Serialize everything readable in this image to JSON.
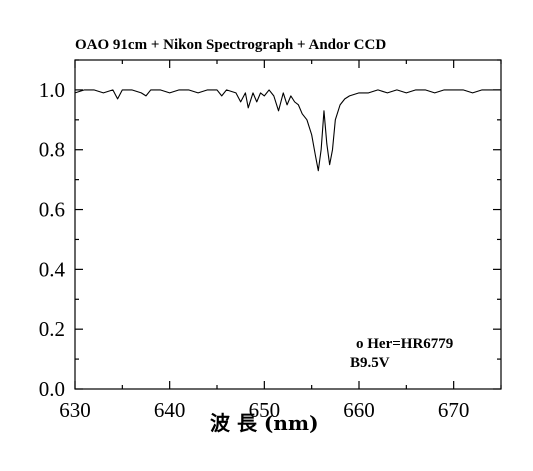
{
  "chart_data": {
    "type": "line",
    "title": "OAO 91cm + Nikon Spectrograph + Andor CCD",
    "xlabel": "波 長 (nm)",
    "ylabel": "",
    "xlim": [
      630,
      675
    ],
    "ylim": [
      0.0,
      1.1
    ],
    "x_ticks": [
      630,
      640,
      650,
      660,
      670
    ],
    "x_tick_labels": [
      "630",
      "640",
      "650",
      "660",
      "670"
    ],
    "y_ticks": [
      0.0,
      0.2,
      0.4,
      0.6,
      0.8,
      1.0
    ],
    "y_tick_labels": [
      "0.0",
      "0.2",
      "0.4",
      "0.6",
      "0.8",
      "1.0"
    ],
    "grid": false,
    "annotations": [
      "o Her=HR6779",
      "B9.5V"
    ],
    "series": [
      {
        "x": [
          630.0,
          631.0,
          632.0,
          633.0,
          634.0,
          634.5,
          635.0,
          636.0,
          637.0,
          637.5,
          638.0,
          639.0,
          640.0,
          641.0,
          642.0,
          643.0,
          644.0,
          645.0,
          645.5,
          646.0,
          647.0,
          647.5,
          648.0,
          648.3,
          648.8,
          649.2,
          649.6,
          650.0,
          650.5,
          651.0,
          651.5,
          652.0,
          652.4,
          652.8,
          653.2,
          653.6,
          654.0,
          654.5,
          655.0,
          655.4,
          655.7,
          656.0,
          656.3,
          656.6,
          656.9,
          657.2,
          657.5,
          658.0,
          658.5,
          659.0,
          660.0,
          661.0,
          662.0,
          663.0,
          664.0,
          665.0,
          666.0,
          667.0,
          668.0,
          669.0,
          670.0,
          671.0,
          672.0,
          673.0,
          674.0,
          675.0
        ],
        "y": [
          0.99,
          1.0,
          1.0,
          0.99,
          1.0,
          0.97,
          1.0,
          1.0,
          0.99,
          0.98,
          1.0,
          1.0,
          0.99,
          1.0,
          1.0,
          0.99,
          1.0,
          1.0,
          0.98,
          1.0,
          0.99,
          0.96,
          0.99,
          0.94,
          0.99,
          0.96,
          0.99,
          0.98,
          1.0,
          0.98,
          0.93,
          0.99,
          0.95,
          0.98,
          0.96,
          0.95,
          0.92,
          0.9,
          0.85,
          0.78,
          0.73,
          0.8,
          0.93,
          0.82,
          0.75,
          0.8,
          0.9,
          0.95,
          0.97,
          0.98,
          0.99,
          0.99,
          1.0,
          0.99,
          1.0,
          0.99,
          1.0,
          1.0,
          0.99,
          1.0,
          1.0,
          1.0,
          0.99,
          1.0,
          1.0,
          1.0
        ]
      }
    ]
  }
}
